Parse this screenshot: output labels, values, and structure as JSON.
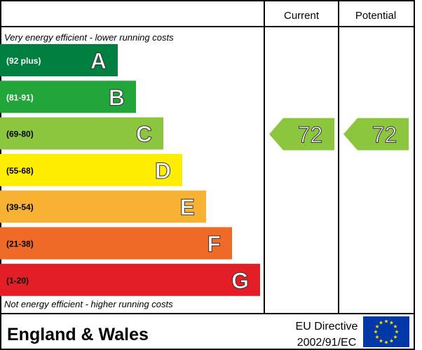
{
  "chart_data": {
    "type": "bar",
    "columns": {
      "current": "Current",
      "potential": "Potential"
    },
    "top_caption": "Very energy efficient - lower running costs",
    "bottom_caption": "Not energy efficient - higher running costs",
    "bands": [
      {
        "letter": "A",
        "range": "(92 plus)",
        "color": "#008040",
        "text_color": "#ffffff"
      },
      {
        "letter": "B",
        "range": "(81-91)",
        "color": "#22a539",
        "text_color": "#ffffff"
      },
      {
        "letter": "C",
        "range": "(69-80)",
        "color": "#8cc63f",
        "text_color": "#000000"
      },
      {
        "letter": "D",
        "range": "(55-68)",
        "color": "#ffed00",
        "text_color": "#000000"
      },
      {
        "letter": "E",
        "range": "(39-54)",
        "color": "#f8b233",
        "text_color": "#000000"
      },
      {
        "letter": "F",
        "range": "(21-38)",
        "color": "#ef6a26",
        "text_color": "#000000"
      },
      {
        "letter": "G",
        "range": "(1-20)",
        "color": "#e41e26",
        "text_color": "#000000"
      }
    ],
    "current": {
      "value": 72,
      "label": "72",
      "band": "C",
      "color": "#8cc63f"
    },
    "potential": {
      "value": 72,
      "label": "72",
      "band": "C",
      "color": "#8cc63f"
    }
  },
  "footer": {
    "region": "England & Wales",
    "directive_line1": "EU Directive",
    "directive_line2": "2002/91/EC",
    "flag_name": "eu-flag-icon"
  }
}
